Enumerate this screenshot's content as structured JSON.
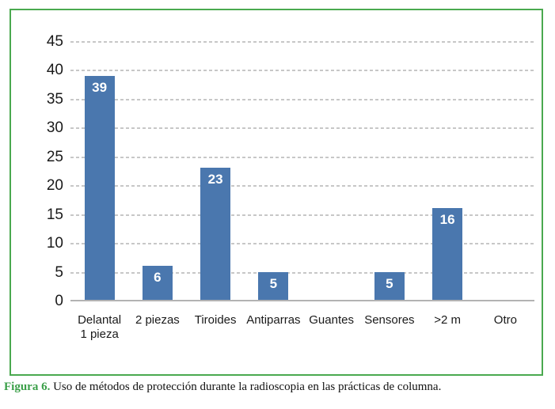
{
  "figure": {
    "caption": {
      "prefix": "Figura 6.",
      "text": "Uso de métodos de protección durante la radioscopia en las prácticas de columna."
    }
  },
  "chart_data": {
    "type": "bar",
    "categories": [
      "Delantal\n1 pieza",
      "2 piezas",
      "Tiroides",
      "Antiparras",
      "Guantes",
      "Sensores",
      ">2 m",
      "Otro"
    ],
    "values": [
      39,
      6,
      23,
      5,
      0,
      5,
      16,
      0
    ],
    "title": "",
    "xlabel": "",
    "ylabel": "",
    "ylim": [
      0,
      45
    ],
    "yticks": [
      0,
      5,
      10,
      15,
      20,
      25,
      30,
      35,
      40,
      45
    ],
    "grid": "horizontal-dashed",
    "legend": "none",
    "colors": {
      "bar": "#4a77ae",
      "data_label": "#ffffff",
      "grid": "#c7c7c7",
      "axis_line": "#b3b3b3",
      "tick_label": "#1a1a1a",
      "frame_border": "#4aa94f",
      "caption_accent": "#3a9f48"
    }
  }
}
